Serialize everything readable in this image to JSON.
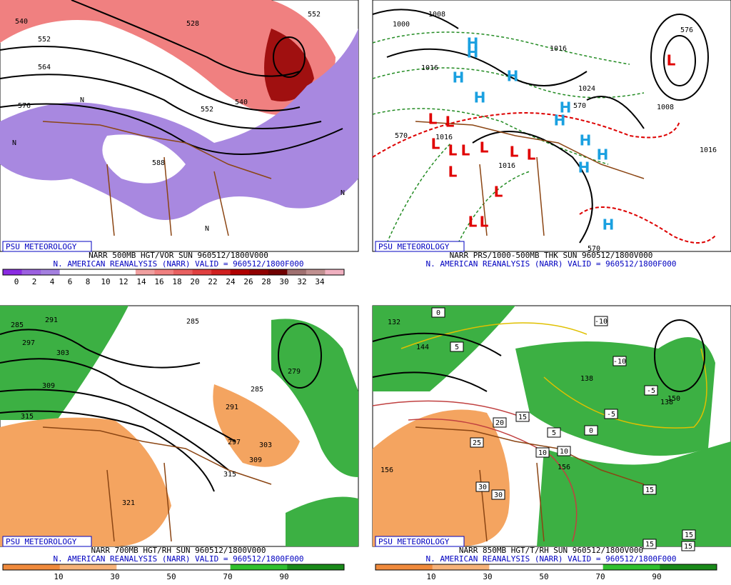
{
  "panels": [
    {
      "credit": "PSU METEOROLOGY",
      "caption": "NARR 500MB HGT/VOR SUN 960512/1800V000",
      "source": "N. AMERICAN REANALYSIS (NARR) VALID = 960512/1800F000",
      "colorbar": {
        "labels": [
          0,
          2,
          4,
          6,
          8,
          10,
          12,
          14,
          16,
          18,
          20,
          22,
          24,
          26,
          28,
          30,
          32,
          34
        ],
        "colors": [
          "#8a2be2",
          "#9c60e0",
          "#a480e0",
          "#ffffff",
          "#ffffff",
          "#ffffff",
          "#ffffff",
          "#f0a0a0",
          "#f08080",
          "#e86060",
          "#e04040",
          "#d02020",
          "#b00000",
          "#900000",
          "#700000",
          "#a07070",
          "#c09090",
          "#f0b0c0"
        ]
      },
      "map_labels": [
        "540",
        "528",
        "552",
        "552",
        "564",
        "576",
        "552",
        "540",
        "588",
        "N",
        "N",
        "N",
        "N"
      ]
    },
    {
      "credit": "PSU METEOROLOGY",
      "caption": "NARR PRS/1000-500MB THK SUN 960512/1800V000",
      "source": "N. AMERICAN REANALYSIS (NARR) VALID = 960512/1800F000",
      "map_labels": [
        "1000",
        "1008",
        "1016",
        "1016",
        "1016",
        "1016",
        "1024",
        "1016",
        "1008",
        "570",
        "570",
        "576",
        "570"
      ],
      "high_labels": [
        "H",
        "H",
        "H",
        "H",
        "H",
        "H",
        "H",
        "H",
        "H",
        "H",
        "H"
      ],
      "low_labels": [
        "L",
        "L",
        "L",
        "L",
        "L",
        "L",
        "L",
        "L",
        "L",
        "L",
        "L",
        "L",
        "L"
      ]
    },
    {
      "credit": "PSU METEOROLOGY",
      "caption": "NARR 700MB HGT/RH SUN 960512/1800V000",
      "source": "N. AMERICAN REANALYSIS (NARR) VALID = 960512/1800F000",
      "colorbar": {
        "labels": [
          10,
          30,
          50,
          70,
          90
        ],
        "colors": [
          "#f08a3c",
          "#f6b27a",
          "#ffffff",
          "#ffffff",
          "#30c030",
          "#1a8a1a"
        ]
      },
      "map_labels": [
        "285",
        "291",
        "297",
        "303",
        "309",
        "315",
        "321",
        "285",
        "279",
        "285",
        "291",
        "297",
        "303",
        "309",
        "315"
      ]
    },
    {
      "credit": "PSU METEOROLOGY",
      "caption": "NARR 850MB HGT/T/RH SUN 960512/1800V000",
      "source": "N. AMERICAN REANALYSIS (NARR) VALID = 960512/1800F000",
      "colorbar": {
        "labels": [
          10,
          30,
          50,
          70,
          90
        ],
        "colors": [
          "#f08a3c",
          "#f6b27a",
          "#ffffff",
          "#ffffff",
          "#30c030",
          "#1a8a1a"
        ]
      },
      "map_labels": [
        "132",
        "144",
        "156",
        "138",
        "150",
        "156",
        "138"
      ],
      "temp_labels": [
        "0",
        "5",
        "10",
        "15",
        "20",
        "25",
        "30",
        "30",
        "-10",
        "-10",
        "-5",
        "-5",
        "5",
        "0",
        "10",
        "15",
        "15",
        "15",
        "15"
      ]
    }
  ]
}
